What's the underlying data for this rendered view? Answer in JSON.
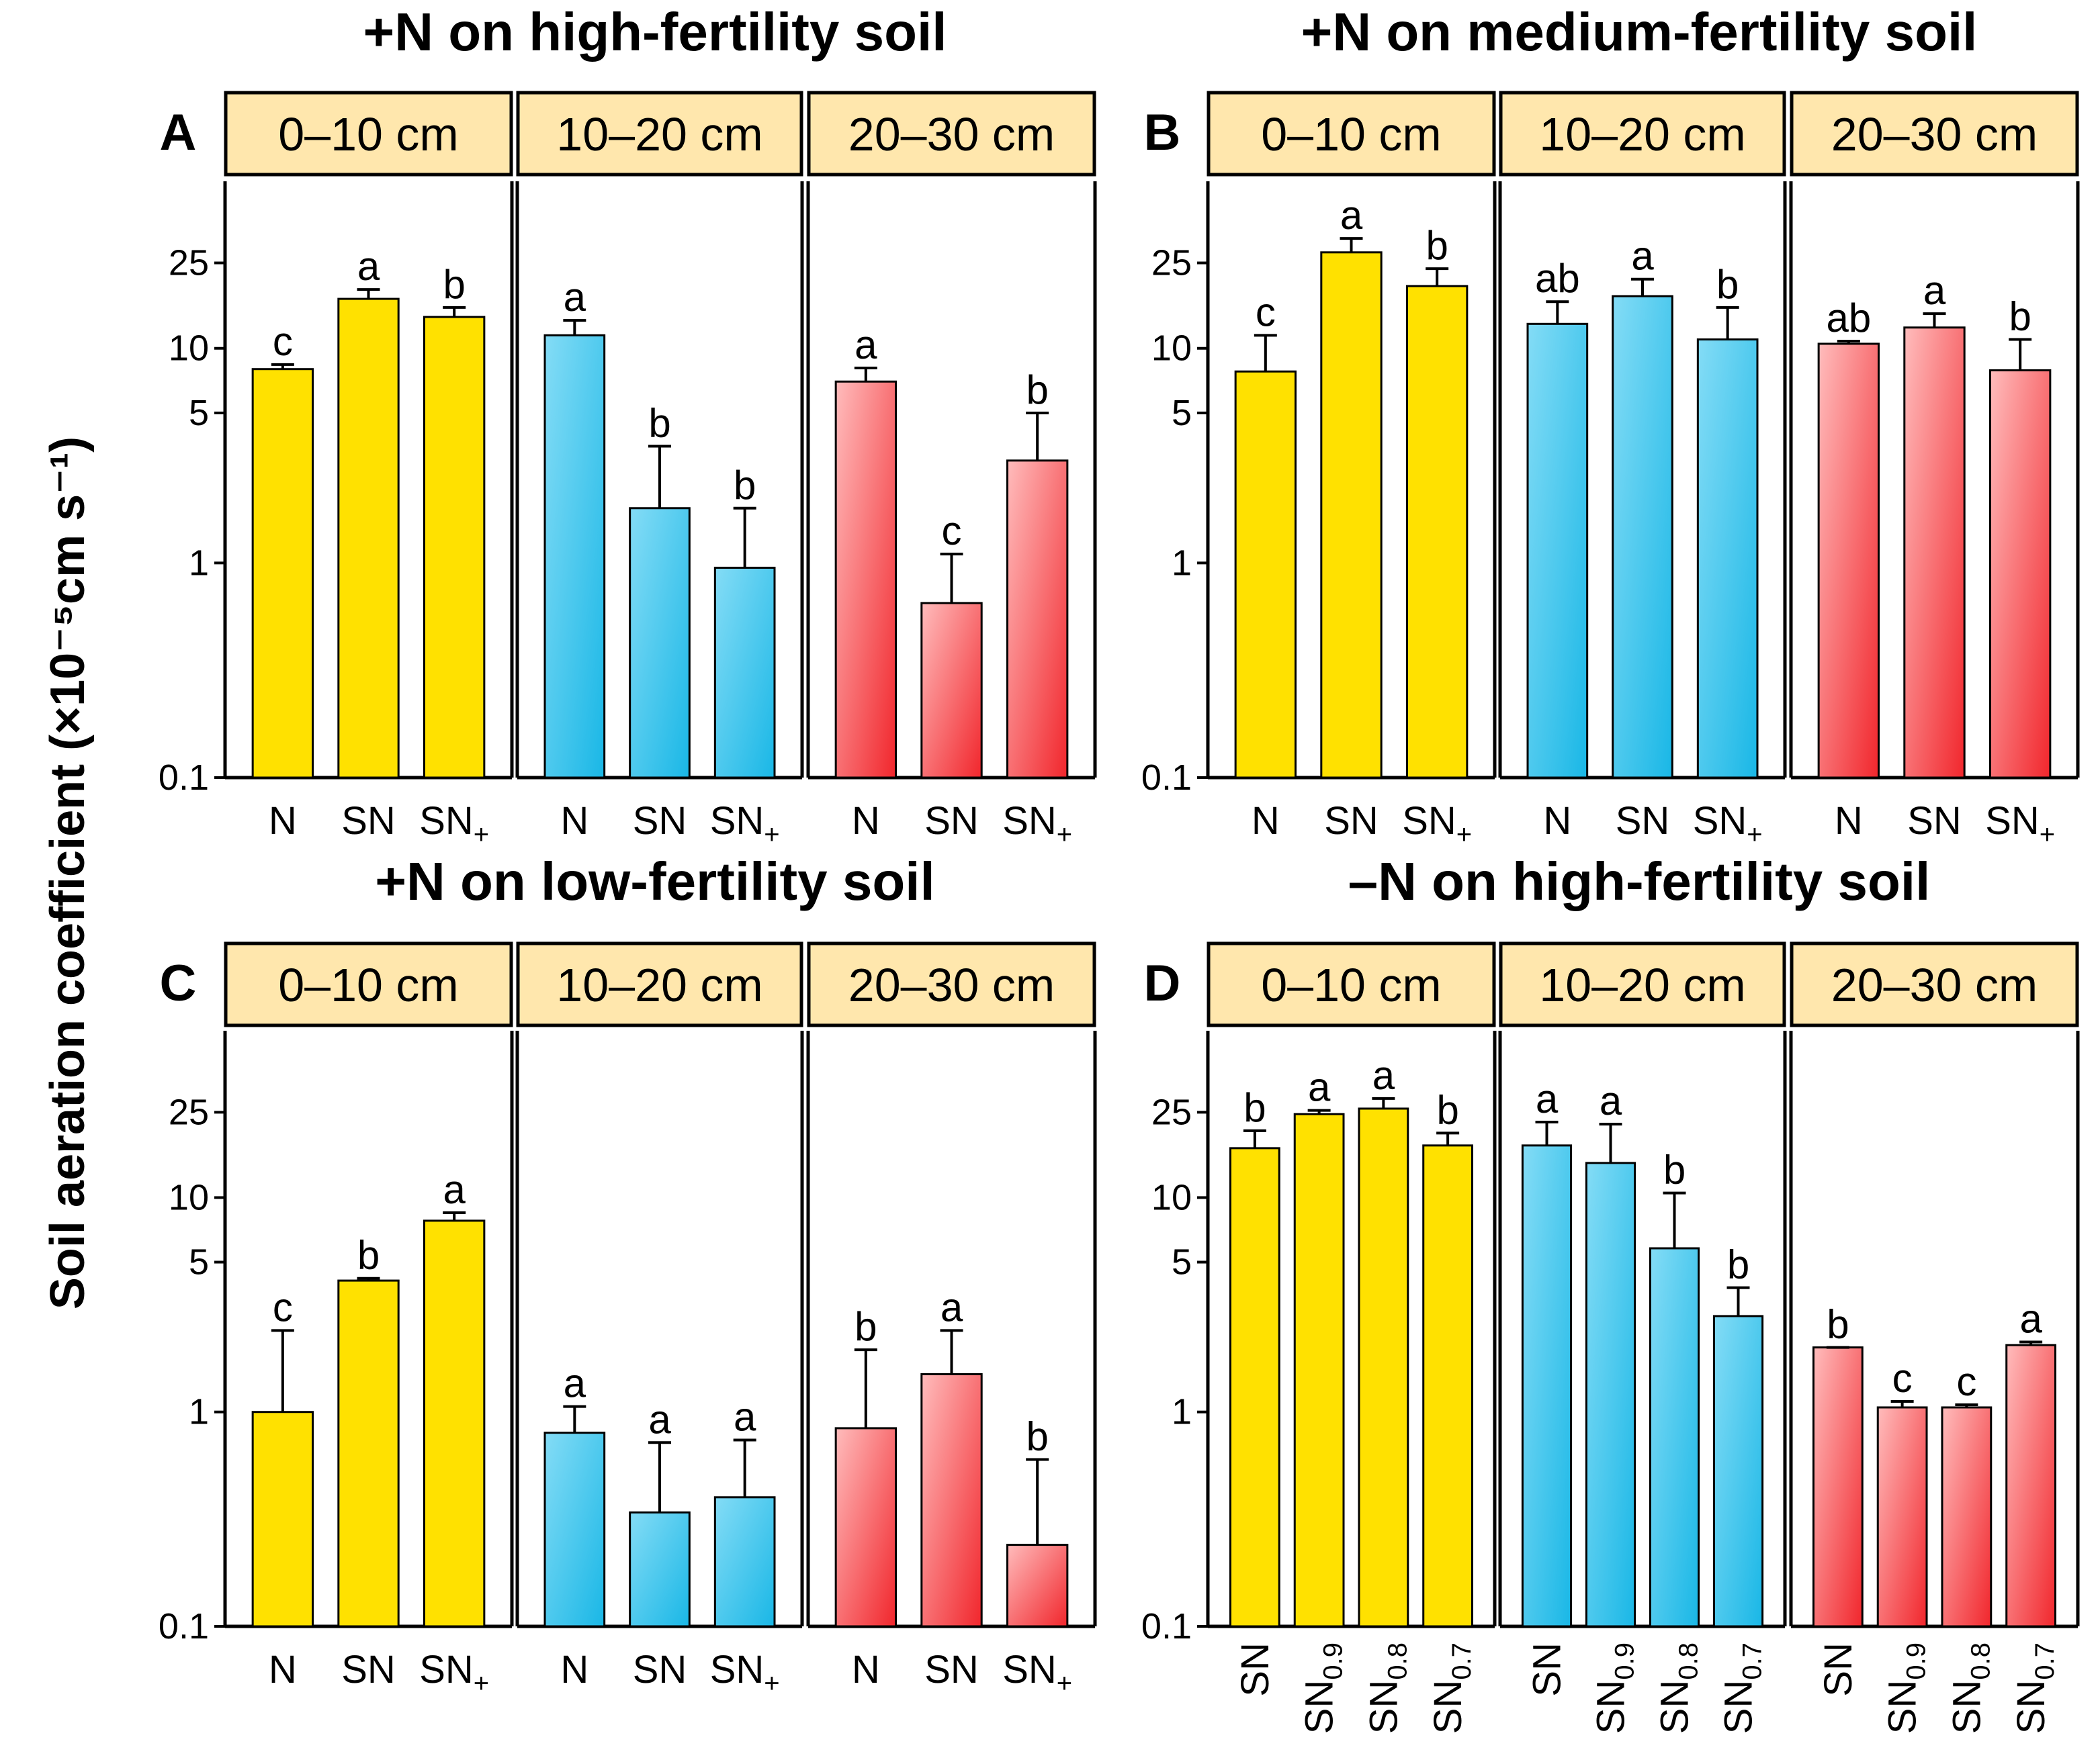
{
  "y_axis_label": "Soil aeration coefficient (×10⁻⁵cm s⁻¹)",
  "colors": {
    "yellow_fill": "#ffe100",
    "blue_light": "#84dcf6",
    "blue_dark": "#19b7e6",
    "red_light": "#ffbcbc",
    "red_dark": "#f1262c",
    "strip_fill": "#ffe7ad",
    "axis": "#000000"
  },
  "chart_data": [
    {
      "panel": "A",
      "type": "bar",
      "title": "+N on high-fertility soil",
      "y_scale": "log",
      "ylim": [
        0.1,
        60
      ],
      "yticks": [
        0.1,
        1,
        5,
        10,
        25
      ],
      "ytick_labels": [
        "0.1",
        "1",
        "5",
        "10",
        "25"
      ],
      "facets": [
        {
          "strip": "0–10 cm",
          "color": "yellow",
          "categories": [
            "N",
            "SN",
            "SN+"
          ],
          "category_labels": [
            [
              "N",
              ""
            ],
            [
              "SN",
              ""
            ],
            [
              "SN",
              "+"
            ]
          ],
          "values": [
            8.0,
            17.0,
            14.0
          ],
          "error_upper": [
            8.4,
            18.8,
            15.5
          ],
          "letters": [
            "c",
            "a",
            "b"
          ]
        },
        {
          "strip": "10–20 cm",
          "color": "blue",
          "categories": [
            "N",
            "SN",
            "SN+"
          ],
          "category_labels": [
            [
              "N",
              ""
            ],
            [
              "SN",
              ""
            ],
            [
              "SN",
              "+"
            ]
          ],
          "values": [
            11.5,
            1.8,
            0.95
          ],
          "error_upper": [
            13.5,
            3.5,
            1.8
          ],
          "letters": [
            "a",
            "b",
            "b"
          ]
        },
        {
          "strip": "20–30 cm",
          "color": "red",
          "categories": [
            "N",
            "SN",
            "SN+"
          ],
          "category_labels": [
            [
              "N",
              ""
            ],
            [
              "SN",
              ""
            ],
            [
              "SN",
              "+"
            ]
          ],
          "values": [
            7.0,
            0.65,
            3.0
          ],
          "error_upper": [
            8.1,
            1.1,
            5.0
          ],
          "letters": [
            "a",
            "c",
            "b"
          ]
        }
      ]
    },
    {
      "panel": "B",
      "type": "bar",
      "title": "+N on medium-fertility soil",
      "y_scale": "log",
      "ylim": [
        0.1,
        60
      ],
      "yticks": [
        0.1,
        1,
        5,
        10,
        25
      ],
      "ytick_labels": [
        "0.1",
        "1",
        "5",
        "10",
        "25"
      ],
      "facets": [
        {
          "strip": "0–10 cm",
          "color": "yellow",
          "categories": [
            "N",
            "SN",
            "SN+"
          ],
          "category_labels": [
            [
              "N",
              ""
            ],
            [
              "SN",
              ""
            ],
            [
              "SN",
              "+"
            ]
          ],
          "values": [
            7.8,
            28.0,
            19.5
          ],
          "error_upper": [
            11.5,
            32.5,
            23.5
          ],
          "letters": [
            "c",
            "a",
            "b"
          ]
        },
        {
          "strip": "10–20 cm",
          "color": "blue",
          "categories": [
            "N",
            "SN",
            "SN+"
          ],
          "category_labels": [
            [
              "N",
              ""
            ],
            [
              "SN",
              ""
            ],
            [
              "SN",
              "+"
            ]
          ],
          "values": [
            13.0,
            17.5,
            11.0
          ],
          "error_upper": [
            16.5,
            21.0,
            15.5
          ],
          "letters": [
            "ab",
            "a",
            "b"
          ]
        },
        {
          "strip": "20–30 cm",
          "color": "red",
          "categories": [
            "N",
            "SN",
            "SN+"
          ],
          "category_labels": [
            [
              "N",
              ""
            ],
            [
              "SN",
              ""
            ],
            [
              "SN",
              "+"
            ]
          ],
          "values": [
            10.5,
            12.5,
            7.9
          ],
          "error_upper": [
            10.8,
            14.5,
            11.0
          ],
          "letters": [
            "ab",
            "a",
            "b"
          ]
        }
      ]
    },
    {
      "panel": "C",
      "type": "bar",
      "title": "+N on low-fertility soil",
      "y_scale": "log",
      "ylim": [
        0.1,
        60
      ],
      "yticks": [
        0.1,
        1,
        5,
        10,
        25
      ],
      "ytick_labels": [
        "0.1",
        "1",
        "5",
        "10",
        "25"
      ],
      "facets": [
        {
          "strip": "0–10 cm",
          "color": "yellow",
          "categories": [
            "N",
            "SN",
            "SN+"
          ],
          "category_labels": [
            [
              "N",
              ""
            ],
            [
              "SN",
              ""
            ],
            [
              "SN",
              "+"
            ]
          ],
          "values": [
            1.0,
            4.1,
            7.8
          ],
          "error_upper": [
            2.4,
            4.2,
            8.5
          ],
          "letters": [
            "c",
            "b",
            "a"
          ]
        },
        {
          "strip": "10–20 cm",
          "color": "blue",
          "categories": [
            "N",
            "SN",
            "SN+"
          ],
          "category_labels": [
            [
              "N",
              ""
            ],
            [
              "SN",
              ""
            ],
            [
              "SN",
              "+"
            ]
          ],
          "values": [
            0.8,
            0.34,
            0.4
          ],
          "error_upper": [
            1.06,
            0.72,
            0.74
          ],
          "letters": [
            "a",
            "a",
            "a"
          ]
        },
        {
          "strip": "20–30 cm",
          "color": "red",
          "categories": [
            "N",
            "SN",
            "SN+"
          ],
          "category_labels": [
            [
              "N",
              ""
            ],
            [
              "SN",
              ""
            ],
            [
              "SN",
              "+"
            ]
          ],
          "values": [
            0.84,
            1.5,
            0.24
          ],
          "error_upper": [
            1.95,
            2.4,
            0.6
          ],
          "letters": [
            "b",
            "a",
            "b"
          ]
        }
      ]
    },
    {
      "panel": "D",
      "type": "bar",
      "title": "–N on high-fertility soil",
      "y_scale": "log",
      "ylim": [
        0.1,
        60
      ],
      "yticks": [
        0.1,
        1,
        5,
        10,
        25
      ],
      "ytick_labels": [
        "0.1",
        "1",
        "5",
        "10",
        "25"
      ],
      "rotated_categories": true,
      "facets": [
        {
          "strip": "0–10 cm",
          "color": "yellow",
          "categories": [
            "SN",
            "SN0.9",
            "SN0.8",
            "SN0.7"
          ],
          "category_labels": [
            [
              "SN",
              ""
            ],
            [
              "SN",
              "0.9"
            ],
            [
              "SN",
              "0.8"
            ],
            [
              "SN",
              "0.7"
            ]
          ],
          "values": [
            17.0,
            24.5,
            26.0,
            17.5
          ],
          "error_upper": [
            20.5,
            25.5,
            29.0,
            20.0
          ],
          "letters": [
            "b",
            "a",
            "a",
            "b"
          ]
        },
        {
          "strip": "10–20 cm",
          "color": "blue",
          "categories": [
            "SN",
            "SN0.9",
            "SN0.8",
            "SN0.7"
          ],
          "category_labels": [
            [
              "SN",
              ""
            ],
            [
              "SN",
              "0.9"
            ],
            [
              "SN",
              "0.8"
            ],
            [
              "SN",
              "0.7"
            ]
          ],
          "values": [
            17.5,
            14.5,
            5.8,
            2.8
          ],
          "error_upper": [
            22.5,
            22.0,
            10.5,
            3.8
          ],
          "letters": [
            "a",
            "a",
            "b",
            "b"
          ]
        },
        {
          "strip": "20–30 cm",
          "color": "red",
          "categories": [
            "SN",
            "SN0.9",
            "SN0.8",
            "SN0.7"
          ],
          "category_labels": [
            [
              "SN",
              ""
            ],
            [
              "SN",
              "0.9"
            ],
            [
              "SN",
              "0.8"
            ],
            [
              "SN",
              "0.7"
            ]
          ],
          "values": [
            2.0,
            1.05,
            1.05,
            2.05
          ],
          "error_upper": [
            2.0,
            1.12,
            1.08,
            2.12
          ],
          "letters": [
            "b",
            "c",
            "c",
            "a"
          ]
        }
      ]
    }
  ]
}
